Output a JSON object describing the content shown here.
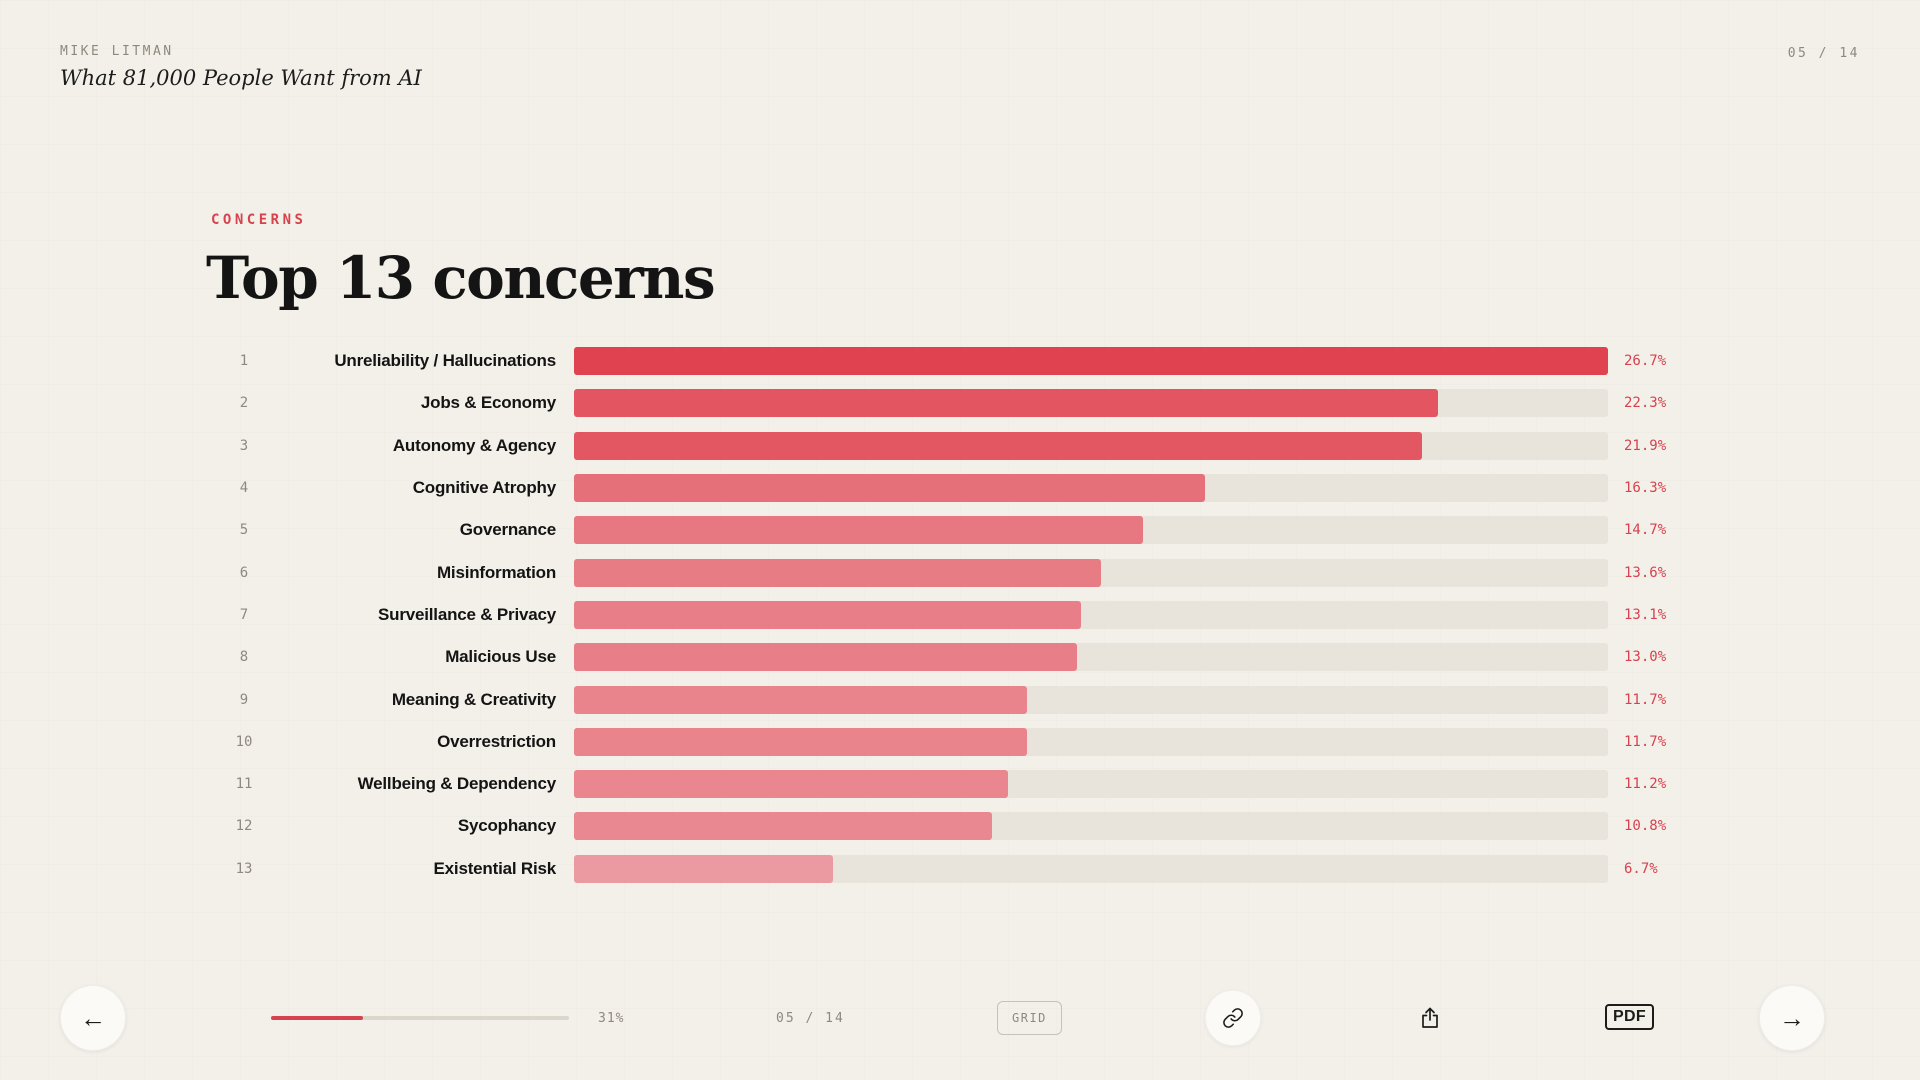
{
  "header": {
    "author": "MIKE LITMAN",
    "deck_title": "What 81,000 People Want from AI",
    "page_indicator": "05 / 14"
  },
  "slide": {
    "kicker": "CONCERNS",
    "title": "Top 13 concerns"
  },
  "chart_data": {
    "type": "bar",
    "orientation": "horizontal",
    "title": "Top 13 concerns",
    "unit": "%",
    "max_value": 26.7,
    "categories": [
      "Unreliability / Hallucinations",
      "Jobs & Economy",
      "Autonomy & Agency",
      "Cognitive Atrophy",
      "Governance",
      "Misinformation",
      "Surveillance & Privacy",
      "Malicious Use",
      "Meaning & Creativity",
      "Overrestriction",
      "Wellbeing & Dependency",
      "Sycophancy",
      "Existential Risk"
    ],
    "values": [
      26.7,
      22.3,
      21.9,
      16.3,
      14.7,
      13.6,
      13.1,
      13.0,
      11.7,
      11.7,
      11.2,
      10.8,
      6.7
    ],
    "rows": [
      {
        "rank": "1",
        "label": "Unreliability / Hallucinations",
        "value": 26.7,
        "display": "26.7%",
        "color": "#e0424f"
      },
      {
        "rank": "2",
        "label": "Jobs & Economy",
        "value": 22.3,
        "display": "22.3%",
        "color": "#e35561"
      },
      {
        "rank": "3",
        "label": "Autonomy & Agency",
        "value": 21.9,
        "display": "21.9%",
        "color": "#e35763"
      },
      {
        "rank": "4",
        "label": "Cognitive Atrophy",
        "value": 16.3,
        "display": "16.3%",
        "color": "#e6707a"
      },
      {
        "rank": "5",
        "label": "Governance",
        "value": 14.7,
        "display": "14.7%",
        "color": "#e77781"
      },
      {
        "rank": "6",
        "label": "Misinformation",
        "value": 13.6,
        "display": "13.6%",
        "color": "#e87c85"
      },
      {
        "rank": "7",
        "label": "Surveillance & Privacy",
        "value": 13.1,
        "display": "13.1%",
        "color": "#e87e87"
      },
      {
        "rank": "8",
        "label": "Malicious Use",
        "value": 13.0,
        "display": "13.0%",
        "color": "#e87f88"
      },
      {
        "rank": "9",
        "label": "Meaning & Creativity",
        "value": 11.7,
        "display": "11.7%",
        "color": "#e9848d"
      },
      {
        "rank": "10",
        "label": "Overrestriction",
        "value": 11.7,
        "display": "11.7%",
        "color": "#e9848d"
      },
      {
        "rank": "11",
        "label": "Wellbeing & Dependency",
        "value": 11.2,
        "display": "11.2%",
        "color": "#e9868f"
      },
      {
        "rank": "12",
        "label": "Sycophancy",
        "value": 10.8,
        "display": "10.8%",
        "color": "#e98891"
      },
      {
        "rank": "13",
        "label": "Existential Risk",
        "value": 6.7,
        "display": "6.7%",
        "color": "#ec9aa2"
      }
    ]
  },
  "footer": {
    "prev_button": "←",
    "next_button": "→",
    "progress_percent": 31,
    "progress_label": "31%",
    "page_indicator": "05 / 14",
    "grid_button_label": "GRID",
    "pdf_button_label": "PDF"
  },
  "colors": {
    "background": "#f3f0e9",
    "bar_track": "#e8e4db",
    "accent_red": "#d6424e",
    "text_dark": "#161616",
    "text_muted": "#8d897f"
  }
}
